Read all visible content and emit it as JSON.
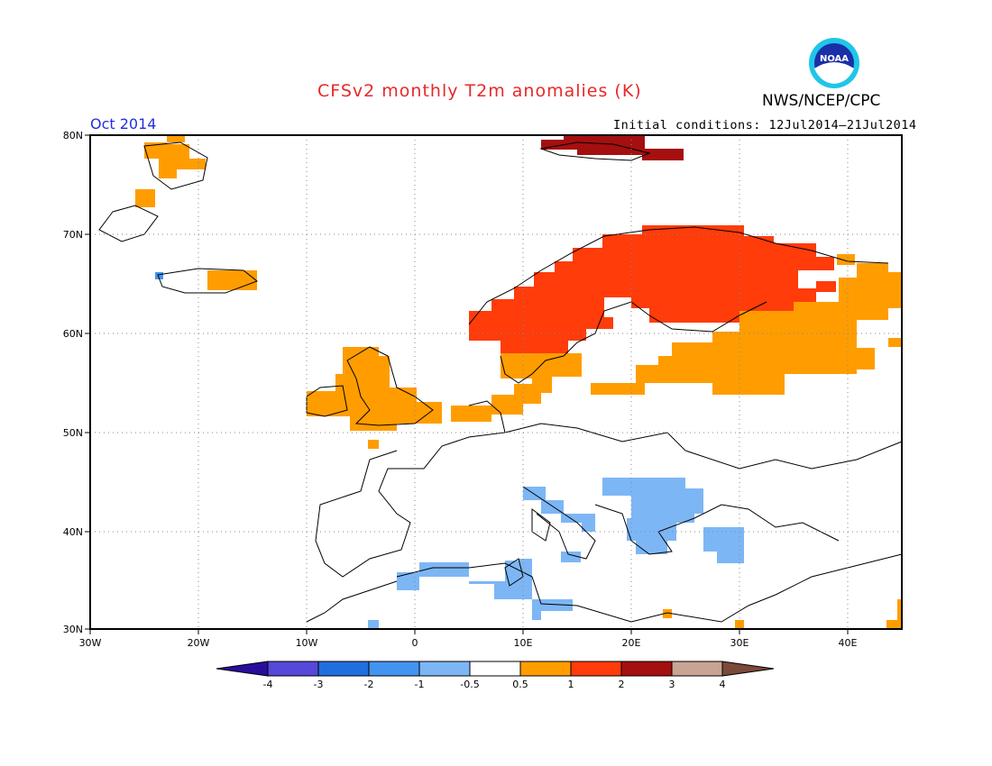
{
  "header": {
    "title": "CFSv2 monthly T2m anomalies (K)",
    "organization": "NWS/NCEP/CPC",
    "month": "Oct 2014",
    "initial_conditions": "Initial conditions: 12Jul2014–21Jul2014"
  },
  "logo": {
    "text": "NOAA",
    "icon": "noaa-logo-icon"
  },
  "map": {
    "lat_labels": [
      "80N",
      "70N",
      "60N",
      "50N",
      "40N",
      "30N"
    ],
    "lon_labels": [
      "30W",
      "20W",
      "10W",
      "0",
      "10E",
      "20E",
      "30E",
      "40E"
    ],
    "grid": true,
    "lat_range": [
      30,
      80
    ],
    "lon_range": [
      -30,
      45
    ]
  },
  "colorbar": {
    "ticks": [
      "-4",
      "-3",
      "-2",
      "-1",
      "-0.5",
      "0.5",
      "1",
      "2",
      "3",
      "4"
    ],
    "colors": [
      "#2b0d9c",
      "#5648d8",
      "#1f6fde",
      "#4394f0",
      "#7db6f5",
      "#ffffff",
      "#ff9d00",
      "#ff3c0a",
      "#a50f0f",
      "#c9a394",
      "#7b4a3a"
    ]
  },
  "anomalies": {
    "orange": "#ff9d00",
    "red": "#ff3c0a",
    "darkred": "#a50f0f",
    "lightblue": "#7db6f5",
    "blue": "#4394f0"
  }
}
